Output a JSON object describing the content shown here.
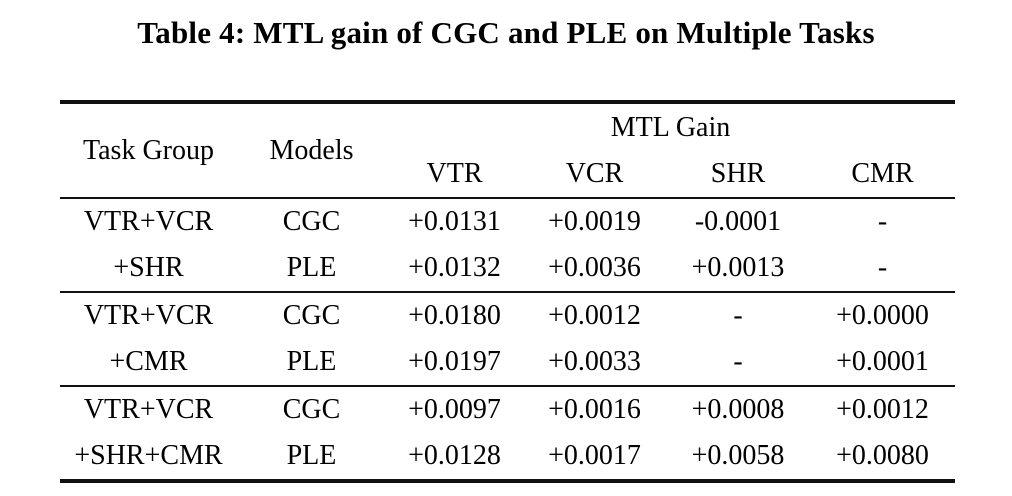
{
  "page_title": "Table 4: MTL gain of CGC and PLE on Multiple Tasks",
  "table": {
    "columns": {
      "task_group": "Task Group",
      "models": "Models",
      "span_header": "MTL Gain",
      "metrics": [
        "VTR",
        "VCR",
        "SHR",
        "CMR"
      ]
    },
    "groups": [
      {
        "task_lines": [
          "VTR+VCR",
          "+SHR"
        ],
        "rows": [
          {
            "model": "CGC",
            "values": [
              {
                "text": "+0.0131",
                "bold": true
              },
              {
                "text": "+0.0019",
                "bold": true
              },
              {
                "text": "-0.0001",
                "bold": false
              },
              {
                "text": "-",
                "bold": false
              }
            ]
          },
          {
            "model": "PLE",
            "values": [
              {
                "text": "+0.0132",
                "bold": true
              },
              {
                "text": "+0.0036",
                "bold": true
              },
              {
                "text": "+0.0013",
                "bold": true
              },
              {
                "text": "-",
                "bold": false
              }
            ]
          }
        ]
      },
      {
        "task_lines": [
          "VTR+VCR",
          "+CMR"
        ],
        "rows": [
          {
            "model": "CGC",
            "values": [
              {
                "text": "+0.0180",
                "bold": true
              },
              {
                "text": "+0.0012",
                "bold": true
              },
              {
                "text": "-",
                "bold": false
              },
              {
                "text": "+0.0000",
                "bold": false
              }
            ]
          },
          {
            "model": "PLE",
            "values": [
              {
                "text": "+0.0197",
                "bold": true
              },
              {
                "text": "+0.0033",
                "bold": true
              },
              {
                "text": "-",
                "bold": false
              },
              {
                "text": "+0.0001",
                "bold": false
              }
            ]
          }
        ]
      },
      {
        "task_lines": [
          "VTR+VCR",
          "+SHR+CMR"
        ],
        "rows": [
          {
            "model": "CGC",
            "values": [
              {
                "text": "+0.0097",
                "bold": true
              },
              {
                "text": "+0.0016",
                "bold": true
              },
              {
                "text": "+0.0008",
                "bold": false
              },
              {
                "text": "+0.0012",
                "bold": true
              }
            ]
          },
          {
            "model": "PLE",
            "values": [
              {
                "text": "+0.0128",
                "bold": true
              },
              {
                "text": "+0.0017",
                "bold": true
              },
              {
                "text": "+0.0058",
                "bold": true
              },
              {
                "text": "+0.0080",
                "bold": true
              }
            ]
          }
        ]
      }
    ]
  }
}
